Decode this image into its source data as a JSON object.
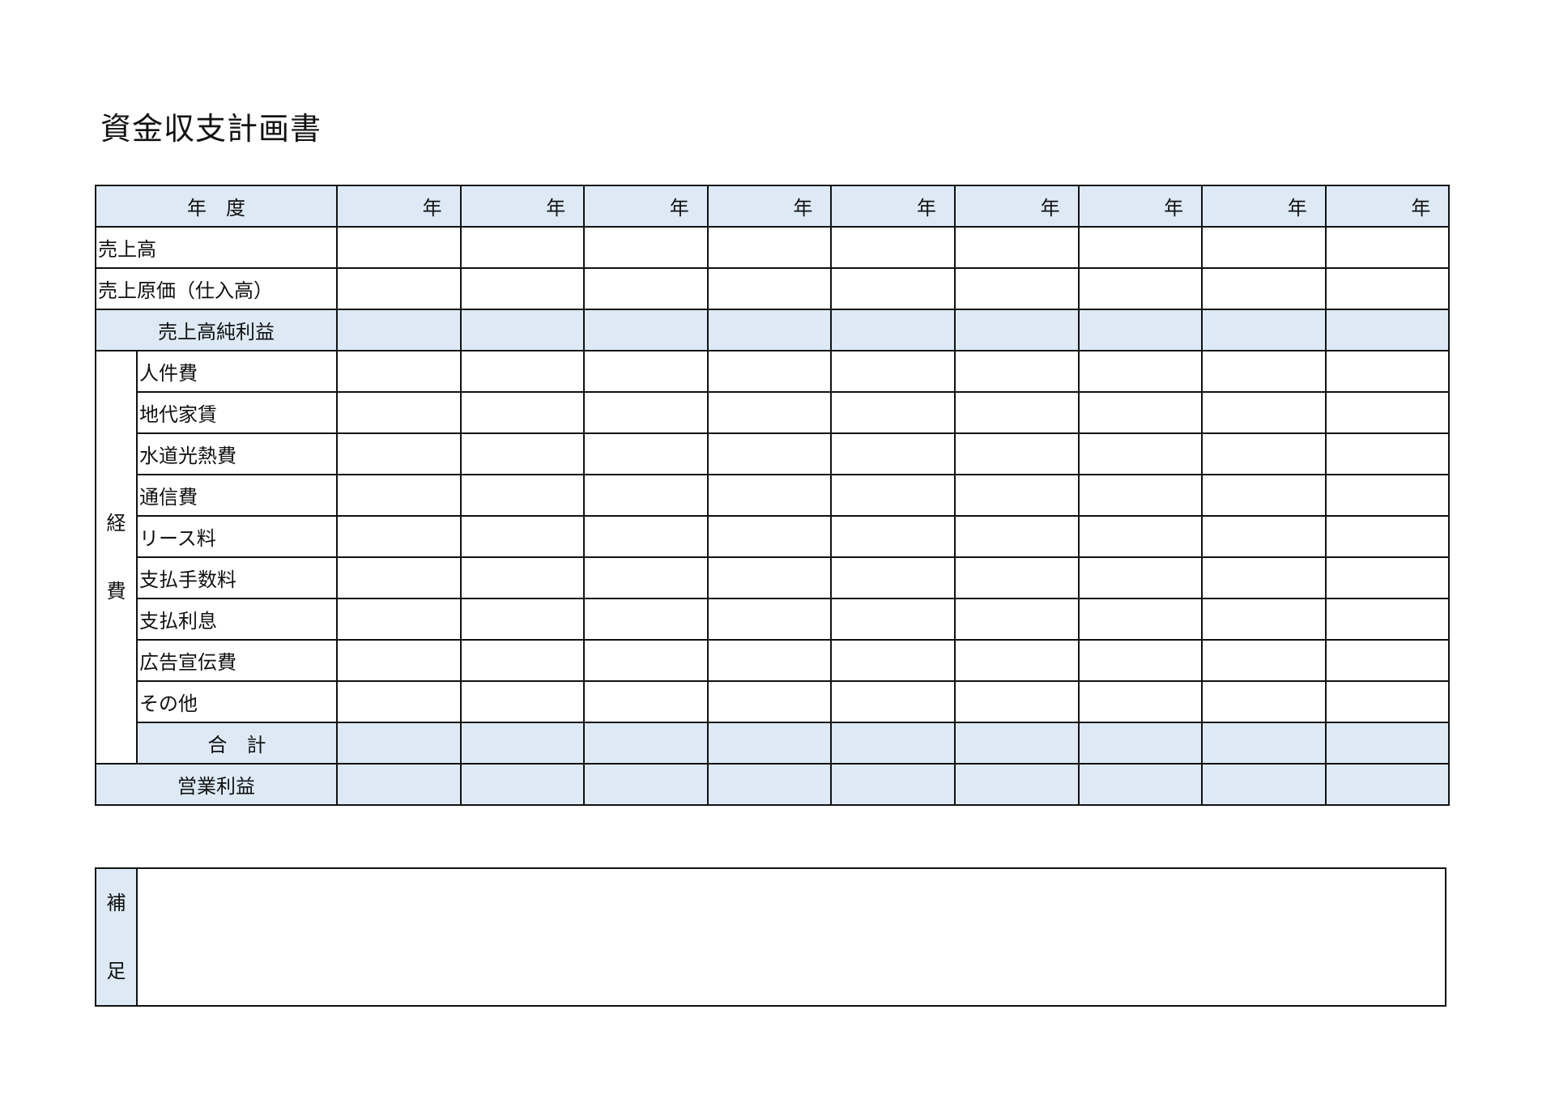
{
  "title": "資金収支計画書",
  "header": {
    "label": "年　度",
    "year_cells": [
      "年",
      "年",
      "年",
      "年",
      "年",
      "年",
      "年",
      "年",
      "年"
    ]
  },
  "rows_top": [
    {
      "label": "売上高",
      "shaded": false
    },
    {
      "label": "売上原価（仕入高）",
      "shaded": false
    },
    {
      "label": "売上高純利益",
      "shaded": true
    }
  ],
  "expenses": {
    "group_label_1": "経",
    "group_label_2": "費",
    "items": [
      "人件費",
      "地代家賃",
      "水道光熱費",
      "通信費",
      "リース料",
      "支払手数料",
      "支払利息",
      "広告宣伝費",
      "その他"
    ],
    "total_label": "合　計"
  },
  "operating_profit_label": "営業利益",
  "notes": {
    "label_1": "補",
    "label_2": "足"
  },
  "colors": {
    "header_fill": "#ddeaf6",
    "border": "#111111"
  }
}
